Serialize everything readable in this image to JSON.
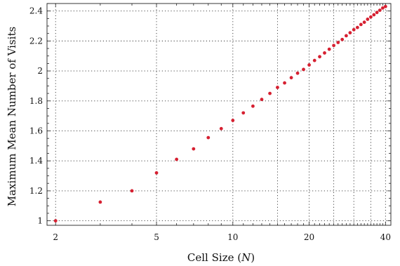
{
  "chart_data": {
    "type": "scatter",
    "xlabel": "Cell Size (",
    "xlabel_var": "N",
    "xlabel_end": ")",
    "ylabel": "Maximum Mean Number of Visits",
    "x_scale": "log",
    "xlim": [
      1.85,
      42
    ],
    "ylim": [
      0.97,
      2.45
    ],
    "x_ticks": [
      2,
      5,
      10,
      20,
      40
    ],
    "y_ticks": [
      1,
      1.2,
      1.4,
      1.6,
      1.8,
      2,
      2.2,
      2.4
    ],
    "y_tick_labels": [
      "1",
      "1.2",
      "1.4",
      "1.6",
      "1.8",
      "2",
      "2.2",
      "2.4"
    ],
    "x_grid": [
      2,
      5,
      10,
      15,
      20,
      25,
      30,
      35,
      40
    ],
    "y_grid": [
      1,
      1.2,
      1.4,
      1.6,
      1.8,
      2,
      2.2,
      2.4
    ],
    "grid": true,
    "color": "#d62031",
    "series": [
      {
        "x": [
          2,
          3,
          4,
          5,
          6,
          7,
          8,
          9,
          10,
          11,
          12,
          13,
          14,
          15,
          16,
          17,
          18,
          19,
          20,
          21,
          22,
          23,
          24,
          25,
          26,
          27,
          28,
          29,
          30,
          31,
          32,
          33,
          34,
          35,
          36,
          37,
          38,
          39,
          40
        ],
        "y": [
          1.0,
          1.125,
          1.2,
          1.32,
          1.41,
          1.48,
          1.555,
          1.615,
          1.67,
          1.72,
          1.765,
          1.81,
          1.85,
          1.89,
          1.92,
          1.955,
          1.985,
          2.01,
          2.04,
          2.07,
          2.095,
          2.12,
          2.145,
          2.17,
          2.19,
          2.21,
          2.235,
          2.255,
          2.275,
          2.29,
          2.31,
          2.325,
          2.345,
          2.36,
          2.375,
          2.39,
          2.405,
          2.42,
          2.43
        ]
      }
    ]
  }
}
